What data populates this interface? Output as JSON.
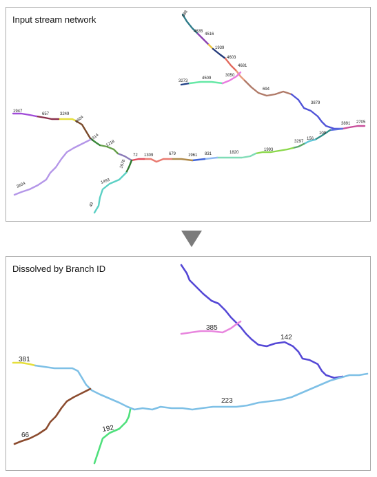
{
  "top_panel": {
    "title": "Input stream network",
    "segment_labels": [
      "688",
      "4635",
      "4516",
      "1939",
      "4603",
      "4681",
      "3273",
      "4509",
      "3050",
      "694",
      "3879",
      "3891",
      "2705",
      "3297",
      "156",
      "109",
      "1947",
      "657",
      "3249",
      "2604",
      "1914",
      "1218",
      "1978",
      "72",
      "1309",
      "679",
      "1961",
      "831",
      "1820",
      "1993",
      "1493",
      "49",
      "3834"
    ]
  },
  "arrow": {
    "color": "#7b7b7b",
    "icon": "down-triangle"
  },
  "bottom_panel": {
    "title": "Dissolved by Branch ID",
    "branch_labels": [
      "385",
      "142",
      "381",
      "223",
      "66",
      "192"
    ]
  },
  "colors": {
    "branch_223": "#7ec0e6",
    "branch_142": "#5548d6",
    "branch_385": "#e886de",
    "branch_381": "#e6df3c",
    "branch_66": "#8b4b2e",
    "branch_192": "#4fe07c"
  }
}
